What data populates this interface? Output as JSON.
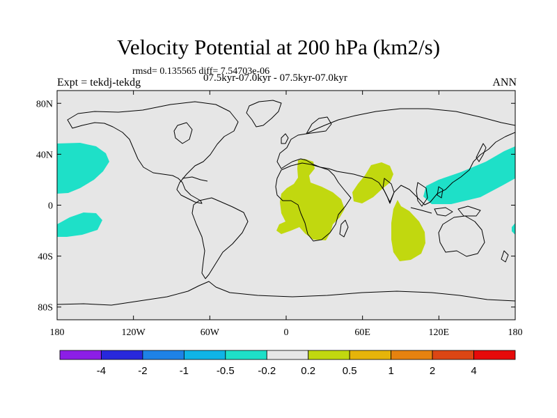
{
  "header": {
    "title": "Velocity Potential at 200 hPa (km2/s)",
    "stats": "rmsd= 0.135565 diff= 7.54703e-06",
    "experiment": "Expt = tekdj-tekdg",
    "period": "07.5kyr-07.0kyr - 07.5kyr-07.0kyr",
    "season": "ANN"
  },
  "map": {
    "projection": "cylindrical equidistant",
    "background_color": "#e6e6e6",
    "lat_ticks": [
      "80N",
      "40N",
      "0",
      "40S",
      "80S"
    ],
    "lon_ticks": [
      "180",
      "120W",
      "60W",
      "0",
      "60E",
      "120E",
      "180"
    ],
    "positive_fill": "#c1d80f",
    "negative_fill": "#1ee0c8"
  },
  "colorbar": {
    "colors": [
      "#8c1ee6",
      "#2828dc",
      "#1e82e6",
      "#0fb4e6",
      "#1ee0c8",
      "#e6e6e6",
      "#c1d80f",
      "#e6b40a",
      "#e6820f",
      "#dc4614",
      "#e60a0a"
    ],
    "labels": [
      "-4",
      "-2",
      "-1",
      "-0.5",
      "-0.2",
      "0.2",
      "0.5",
      "1",
      "2",
      "4"
    ]
  }
}
